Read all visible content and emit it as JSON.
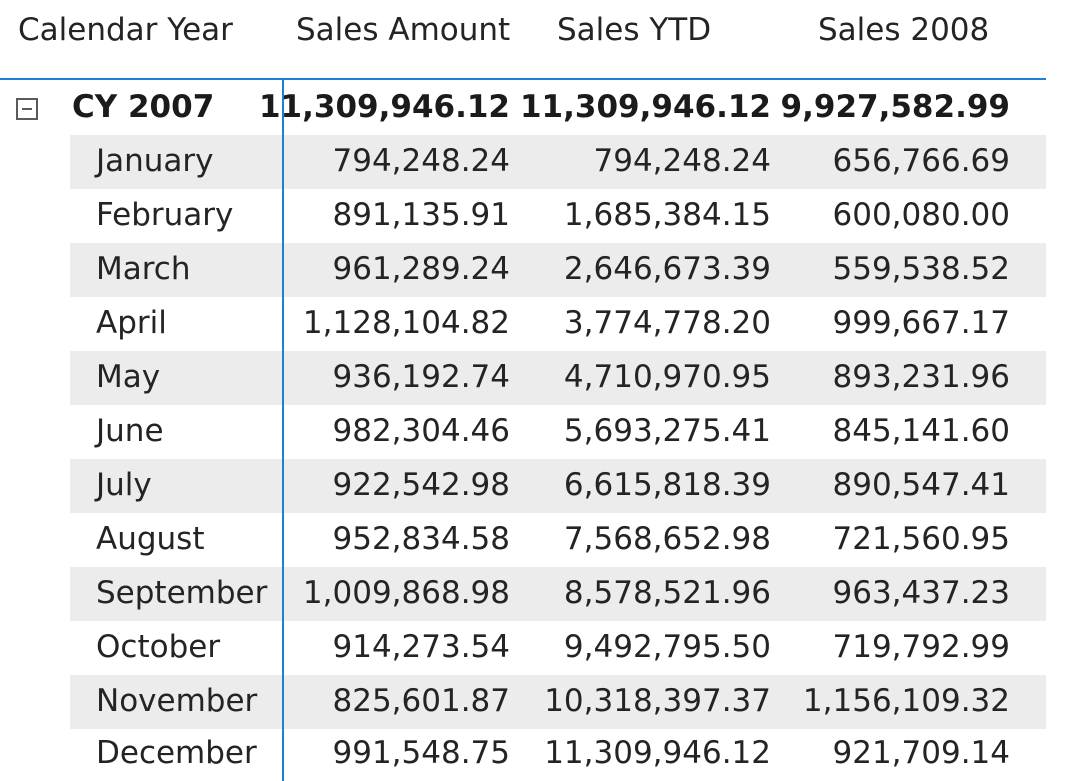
{
  "matrix": {
    "headers": {
      "row_header": "Calendar Year",
      "col1": "Sales Amount",
      "col2": "Sales YTD",
      "col3": "Sales 2008"
    },
    "accent_color": "#1f7fd6",
    "group": {
      "label": "CY 2007",
      "sales_amount": "11,309,946.12",
      "sales_ytd": "11,309,946.12",
      "sales_2008": "9,927,582.99",
      "expand_state_icon": "minus-square-icon"
    },
    "rows": [
      {
        "label": "January",
        "sales_amount": "794,248.24",
        "sales_ytd": "794,248.24",
        "sales_2008": "656,766.69"
      },
      {
        "label": "February",
        "sales_amount": "891,135.91",
        "sales_ytd": "1,685,384.15",
        "sales_2008": "600,080.00"
      },
      {
        "label": "March",
        "sales_amount": "961,289.24",
        "sales_ytd": "2,646,673.39",
        "sales_2008": "559,538.52"
      },
      {
        "label": "April",
        "sales_amount": "1,128,104.82",
        "sales_ytd": "3,774,778.20",
        "sales_2008": "999,667.17"
      },
      {
        "label": "May",
        "sales_amount": "936,192.74",
        "sales_ytd": "4,710,970.95",
        "sales_2008": "893,231.96"
      },
      {
        "label": "June",
        "sales_amount": "982,304.46",
        "sales_ytd": "5,693,275.41",
        "sales_2008": "845,141.60"
      },
      {
        "label": "July",
        "sales_amount": "922,542.98",
        "sales_ytd": "6,615,818.39",
        "sales_2008": "890,547.41"
      },
      {
        "label": "August",
        "sales_amount": "952,834.58",
        "sales_ytd": "7,568,652.98",
        "sales_2008": "721,560.95"
      },
      {
        "label": "September",
        "sales_amount": "1,009,868.98",
        "sales_ytd": "8,578,521.96",
        "sales_2008": "963,437.23"
      },
      {
        "label": "October",
        "sales_amount": "914,273.54",
        "sales_ytd": "9,492,795.50",
        "sales_2008": "719,792.99"
      },
      {
        "label": "November",
        "sales_amount": "825,601.87",
        "sales_ytd": "10,318,397.37",
        "sales_2008": "1,156,109.32"
      },
      {
        "label": "December",
        "sales_amount": "991,548.75",
        "sales_ytd": "11,309,946.12",
        "sales_2008": "921,709.14"
      }
    ]
  }
}
